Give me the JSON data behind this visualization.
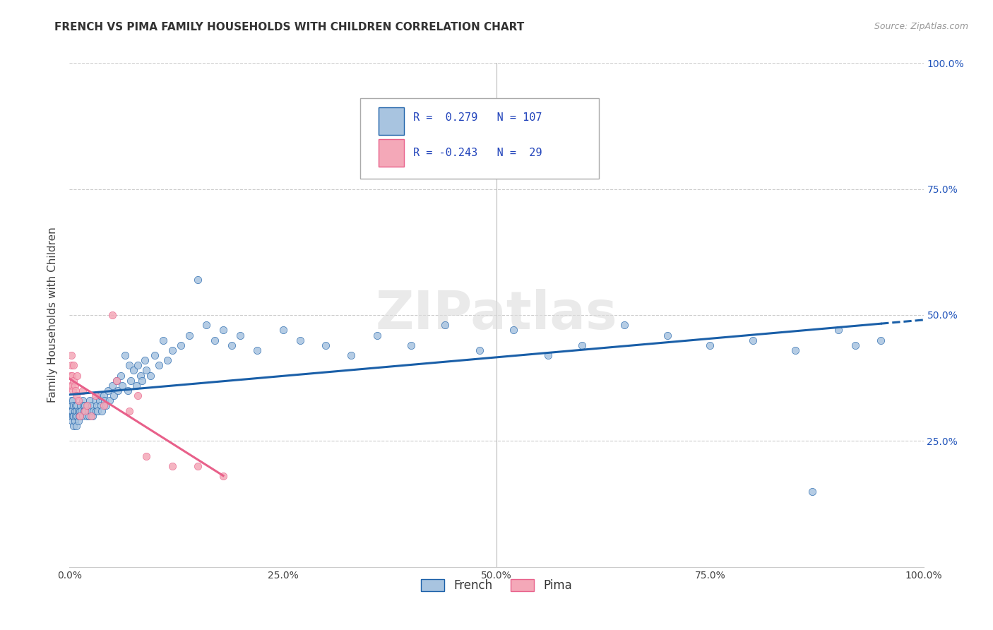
{
  "title": "FRENCH VS PIMA FAMILY HOUSEHOLDS WITH CHILDREN CORRELATION CHART",
  "source": "Source: ZipAtlas.com",
  "ylabel": "Family Households with Children",
  "french_r": 0.279,
  "french_n": 107,
  "pima_r": -0.243,
  "pima_n": 29,
  "french_color": "#a8c4e0",
  "pima_color": "#f4a8b8",
  "french_line_color": "#1a5fa8",
  "pima_line_color": "#e8608a",
  "background_color": "#ffffff",
  "french_points_x": [
    0.001,
    0.001,
    0.002,
    0.002,
    0.002,
    0.003,
    0.003,
    0.003,
    0.004,
    0.004,
    0.005,
    0.005,
    0.005,
    0.006,
    0.006,
    0.007,
    0.007,
    0.008,
    0.008,
    0.009,
    0.009,
    0.01,
    0.01,
    0.011,
    0.012,
    0.013,
    0.014,
    0.015,
    0.015,
    0.016,
    0.017,
    0.018,
    0.019,
    0.02,
    0.021,
    0.022,
    0.023,
    0.024,
    0.025,
    0.026,
    0.027,
    0.028,
    0.03,
    0.031,
    0.032,
    0.033,
    0.035,
    0.036,
    0.037,
    0.038,
    0.04,
    0.041,
    0.043,
    0.045,
    0.047,
    0.05,
    0.052,
    0.055,
    0.057,
    0.06,
    0.062,
    0.065,
    0.068,
    0.07,
    0.072,
    0.075,
    0.078,
    0.08,
    0.083,
    0.085,
    0.088,
    0.09,
    0.095,
    0.1,
    0.105,
    0.11,
    0.115,
    0.12,
    0.13,
    0.14,
    0.15,
    0.16,
    0.17,
    0.18,
    0.19,
    0.2,
    0.22,
    0.25,
    0.27,
    0.3,
    0.33,
    0.36,
    0.4,
    0.44,
    0.48,
    0.52,
    0.56,
    0.6,
    0.65,
    0.7,
    0.75,
    0.8,
    0.85,
    0.87,
    0.9,
    0.92,
    0.95
  ],
  "french_points_y": [
    0.32,
    0.31,
    0.3,
    0.33,
    0.31,
    0.29,
    0.32,
    0.31,
    0.3,
    0.33,
    0.28,
    0.3,
    0.32,
    0.31,
    0.29,
    0.3,
    0.32,
    0.28,
    0.31,
    0.3,
    0.32,
    0.29,
    0.31,
    0.3,
    0.31,
    0.32,
    0.31,
    0.33,
    0.3,
    0.32,
    0.31,
    0.32,
    0.31,
    0.3,
    0.32,
    0.31,
    0.3,
    0.33,
    0.31,
    0.32,
    0.3,
    0.31,
    0.33,
    0.31,
    0.32,
    0.31,
    0.33,
    0.34,
    0.32,
    0.31,
    0.34,
    0.33,
    0.32,
    0.35,
    0.33,
    0.36,
    0.34,
    0.37,
    0.35,
    0.38,
    0.36,
    0.42,
    0.35,
    0.4,
    0.37,
    0.39,
    0.36,
    0.4,
    0.38,
    0.37,
    0.41,
    0.39,
    0.38,
    0.42,
    0.4,
    0.45,
    0.41,
    0.43,
    0.44,
    0.46,
    0.57,
    0.48,
    0.45,
    0.47,
    0.44,
    0.46,
    0.43,
    0.47,
    0.45,
    0.44,
    0.42,
    0.46,
    0.44,
    0.48,
    0.43,
    0.47,
    0.42,
    0.44,
    0.48,
    0.46,
    0.44,
    0.45,
    0.43,
    0.15,
    0.47,
    0.44,
    0.45
  ],
  "pima_points_x": [
    0.001,
    0.001,
    0.002,
    0.002,
    0.003,
    0.003,
    0.004,
    0.005,
    0.005,
    0.006,
    0.007,
    0.008,
    0.009,
    0.01,
    0.012,
    0.015,
    0.018,
    0.02,
    0.025,
    0.03,
    0.04,
    0.05,
    0.055,
    0.07,
    0.08,
    0.09,
    0.12,
    0.15,
    0.18
  ],
  "pima_points_y": [
    0.38,
    0.36,
    0.4,
    0.42,
    0.36,
    0.38,
    0.35,
    0.37,
    0.4,
    0.36,
    0.35,
    0.34,
    0.38,
    0.33,
    0.3,
    0.35,
    0.31,
    0.32,
    0.3,
    0.34,
    0.32,
    0.5,
    0.37,
    0.31,
    0.34,
    0.22,
    0.2,
    0.2,
    0.18
  ],
  "xlim": [
    0.0,
    1.0
  ],
  "ylim": [
    0.0,
    1.0
  ],
  "xticks": [
    0.0,
    0.25,
    0.5,
    0.75,
    1.0
  ],
  "xticklabels": [
    "0.0%",
    "25.0%",
    "50.0%",
    "75.0%",
    "100.0%"
  ],
  "yticks": [
    0.25,
    0.5,
    0.75,
    1.0
  ],
  "yticklabels": [
    "25.0%",
    "50.0%",
    "75.0%",
    "100.0%"
  ],
  "grid_color": "#cccccc",
  "spine_color": "#cccccc"
}
